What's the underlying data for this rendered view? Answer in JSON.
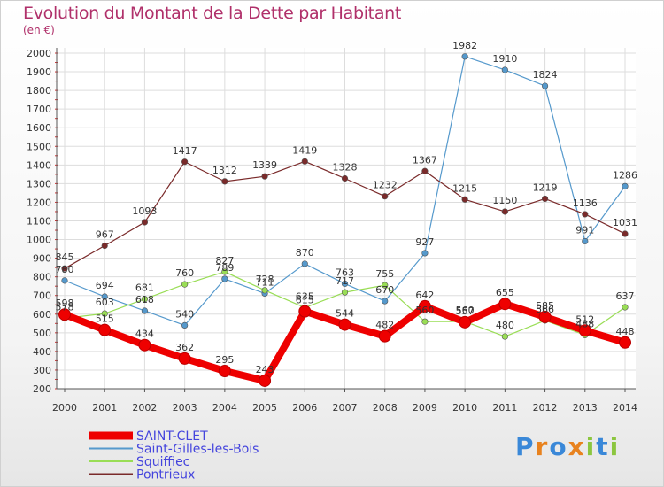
{
  "title": "Evolution du Montant de la Dette par Habitant",
  "unit": "(en €)",
  "logo": {
    "text": "Proxiti",
    "colors": [
      "#3a88d8",
      "#e8821e",
      "#3a88d8",
      "#e8821e",
      "#8cc63f",
      "#3a88d8",
      "#8cc63f"
    ]
  },
  "chart_data": {
    "type": "line",
    "x": [
      "2000",
      "2001",
      "2002",
      "2003",
      "2004",
      "2005",
      "2006",
      "2007",
      "2008",
      "2009",
      "2010",
      "2011",
      "2012",
      "2013",
      "2014"
    ],
    "ylim": [
      200,
      2000
    ],
    "yticks": [
      200,
      300,
      400,
      500,
      600,
      700,
      800,
      900,
      1000,
      1100,
      1200,
      1300,
      1400,
      1500,
      1600,
      1700,
      1800,
      1900,
      2000
    ],
    "grid": true,
    "legend_position": "bottom-left",
    "series": [
      {
        "name": "SAINT-CLET",
        "color": "#ee0000",
        "values": [
          598,
          515,
          434,
          362,
          295,
          243,
          615,
          544,
          482,
          642,
          557,
          655,
          585,
          512,
          448
        ]
      },
      {
        "name": "Saint-Gilles-les-Bois",
        "color": "#5599cc",
        "values": [
          780,
          694,
          618,
          540,
          789,
          711,
          870,
          763,
          670,
          927,
          1982,
          1910,
          1824,
          991,
          1286
        ]
      },
      {
        "name": "Squiffiec",
        "color": "#99dd55",
        "values": [
          578,
          603,
          681,
          760,
          827,
          728,
          635,
          717,
          755,
          560,
          560,
          480,
          566,
          488,
          637
        ]
      },
      {
        "name": "Pontrieux",
        "color": "#7a2a2a",
        "values": [
          845,
          967,
          1093,
          1417,
          1312,
          1339,
          1419,
          1328,
          1232,
          1367,
          1215,
          1150,
          1219,
          1136,
          1031
        ]
      }
    ]
  }
}
